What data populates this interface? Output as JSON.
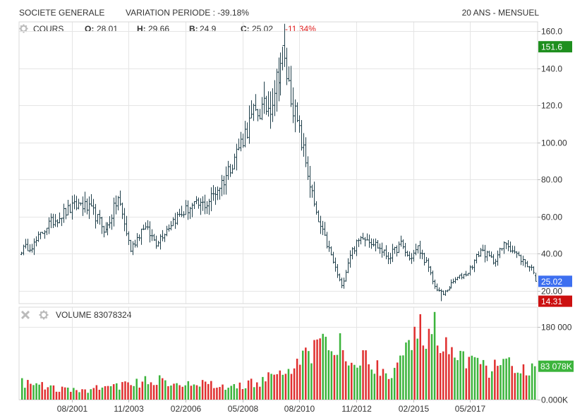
{
  "header": {
    "title": "SOCIETE GENERALE",
    "variation": "VARIATION PERIODE : -39.18%",
    "period": "20 ANS - MENSUEL"
  },
  "price_legend": {
    "label": "COURS",
    "open_label": "O:",
    "open_value": "28.01",
    "high_label": "H:",
    "high_value": "29.66",
    "low_label": "B:",
    "low_value": "24.9",
    "close_label": "C:",
    "close_value": "25.02",
    "change": "-11.34%"
  },
  "volume_legend": {
    "label": "VOLUME",
    "value": "83078324"
  },
  "colors": {
    "up": "#3cb43c",
    "down": "#e03030",
    "candle": "#1f3f4a",
    "grid": "#e5e5e5",
    "max_badge": "#1e8f1e",
    "last_badge": "#3d6ff0",
    "min_badge": "#cc1010"
  },
  "chart_data": [
    {
      "type": "ohlc",
      "title": "COURS",
      "ylim": [
        13,
        165
      ],
      "y_ticks": [
        "20.00",
        "40.00",
        "60.00",
        "80.00",
        "100.00",
        "120.0",
        "140.0",
        "160.0"
      ],
      "y_tick_values": [
        20,
        40,
        60,
        80,
        100,
        120,
        140,
        160
      ],
      "x_ticks": [
        "08/2001",
        "11/2003",
        "02/2006",
        "05/2008",
        "08/2010",
        "11/2012",
        "02/2015",
        "05/2017"
      ],
      "badges": {
        "max": "151.6",
        "last": "25.02",
        "min": "14.31"
      },
      "badge_values": {
        "max": 151.6,
        "last": 25.02,
        "min": 14.31
      },
      "months": 244,
      "anchors": [
        [
          0,
          42
        ],
        [
          6,
          45
        ],
        [
          12,
          55
        ],
        [
          20,
          62
        ],
        [
          28,
          67
        ],
        [
          34,
          62
        ],
        [
          40,
          52
        ],
        [
          46,
          70
        ],
        [
          52,
          42
        ],
        [
          58,
          55
        ],
        [
          64,
          46
        ],
        [
          72,
          58
        ],
        [
          80,
          65
        ],
        [
          88,
          67
        ],
        [
          96,
          80
        ],
        [
          104,
          100
        ],
        [
          110,
          115
        ],
        [
          118,
          120
        ],
        [
          124,
          148
        ],
        [
          128,
          125
        ],
        [
          134,
          95
        ],
        [
          140,
          60
        ],
        [
          146,
          42
        ],
        [
          152,
          22
        ],
        [
          156,
          40
        ],
        [
          162,
          50
        ],
        [
          168,
          45
        ],
        [
          174,
          38
        ],
        [
          180,
          45
        ],
        [
          184,
          37
        ],
        [
          188,
          43
        ],
        [
          192,
          35
        ],
        [
          196,
          22
        ],
        [
          200,
          18
        ],
        [
          206,
          26
        ],
        [
          212,
          30
        ],
        [
          218,
          42
        ],
        [
          224,
          36
        ],
        [
          230,
          46
        ],
        [
          236,
          38
        ],
        [
          244,
          30
        ]
      ]
    },
    {
      "type": "bar",
      "title": "VOLUME",
      "ylim": [
        0,
        230000000
      ],
      "y_ticks": [
        "180 000",
        "0.000K"
      ],
      "y_tick_values": [
        180000000,
        0
      ],
      "last_badge": "83 078K",
      "last_value": 83078324,
      "bar_count": 180,
      "volume_anchors": [
        [
          0,
          45
        ],
        [
          10,
          32
        ],
        [
          20,
          22
        ],
        [
          30,
          35
        ],
        [
          40,
          42
        ],
        [
          48,
          55
        ],
        [
          56,
          40
        ],
        [
          64,
          40
        ],
        [
          72,
          32
        ],
        [
          80,
          42
        ],
        [
          88,
          60
        ],
        [
          94,
          80
        ],
        [
          100,
          110
        ],
        [
          104,
          170
        ],
        [
          108,
          130
        ],
        [
          112,
          160
        ],
        [
          116,
          90
        ],
        [
          120,
          110
        ],
        [
          124,
          90
        ],
        [
          128,
          75
        ],
        [
          134,
          120
        ],
        [
          138,
          160
        ],
        [
          142,
          200
        ],
        [
          146,
          150
        ],
        [
          150,
          110
        ],
        [
          156,
          90
        ],
        [
          164,
          80
        ],
        [
          172,
          90
        ],
        [
          180,
          85
        ]
      ]
    }
  ]
}
